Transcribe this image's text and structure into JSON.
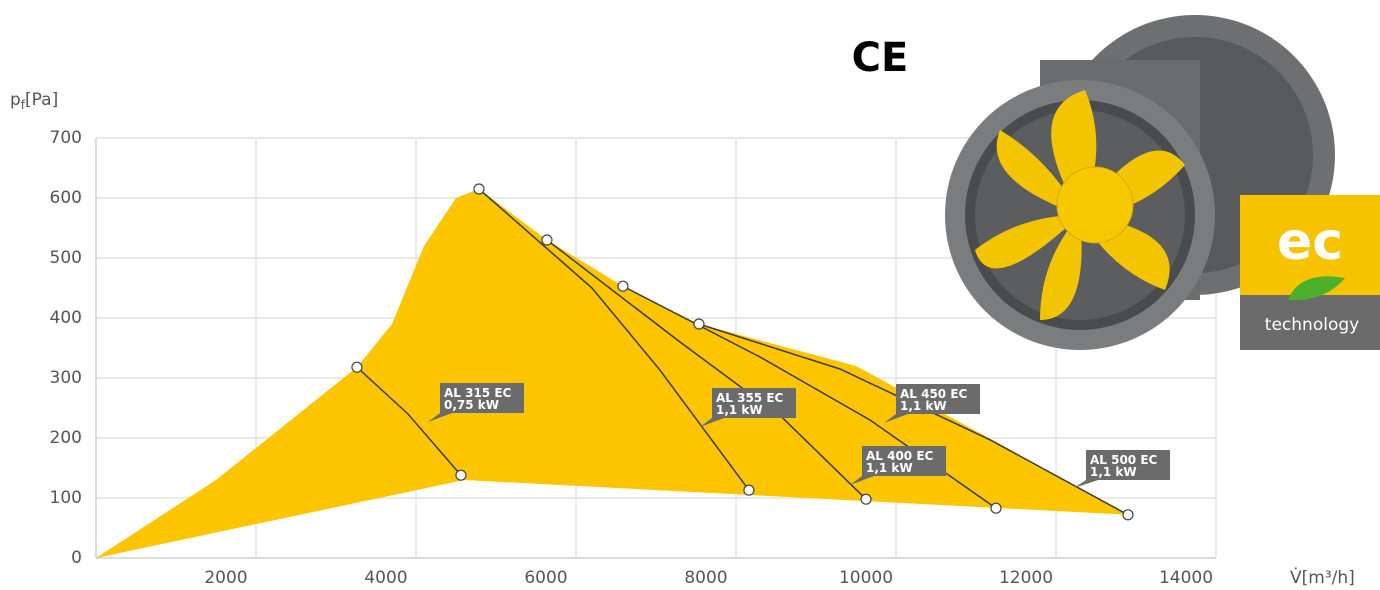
{
  "chart_data": {
    "type": "fan-curves",
    "y_label": {
      "main": "p",
      "sub": "f",
      "unit": "[Pa]"
    },
    "x_label": "V̇[m³/h]",
    "xlim": [
      0,
      14000
    ],
    "xticks": [
      2000,
      4000,
      6000,
      8000,
      10000,
      12000,
      14000
    ],
    "ylim": [
      0,
      700
    ],
    "yticks": [
      0,
      100,
      200,
      300,
      400,
      500,
      600,
      700
    ],
    "grid": true,
    "area_color": "#fcc500",
    "curve_color": "#3a3a3a",
    "label_color": "#6b6b6b",
    "envelope": {
      "x": [
        0,
        1500,
        3262,
        3700,
        4100,
        4500,
        4787,
        5637,
        6587,
        7537,
        9500,
        11300,
        12900,
        4600,
        0
      ],
      "values": [
        0,
        130,
        318,
        390,
        520,
        600,
        615,
        530,
        453,
        390,
        320,
        190,
        72,
        130,
        0
      ]
    },
    "series": [
      {
        "name": "AL 315 EC",
        "power": "0,75 kW",
        "x": [
          3262,
          3900,
          4562
        ],
        "values": [
          318,
          240,
          138
        ]
      },
      {
        "name": "AL 355 EC",
        "power": "1,1 kW",
        "x": [
          4787,
          6200,
          7050,
          8162
        ],
        "values": [
          615,
          450,
          313,
          113
        ]
      },
      {
        "name": "AL 400 EC",
        "power": "1,1 kW",
        "x": [
          5637,
          7300,
          8587,
          9625
        ],
        "values": [
          530,
          360,
          233,
          98
        ]
      },
      {
        "name": "AL 450 EC",
        "power": "1,1 kW",
        "x": [
          6587,
          8300,
          9675,
          11250
        ],
        "values": [
          453,
          335,
          230,
          83
        ]
      },
      {
        "name": "AL 500 EC",
        "power": "1,1 kW",
        "x": [
          7537,
          9300,
          11175,
          12900
        ],
        "values": [
          390,
          315,
          197,
          72
        ]
      }
    ]
  },
  "ce_mark": "CE",
  "badge": {
    "main": "ec",
    "sub": "technology"
  }
}
